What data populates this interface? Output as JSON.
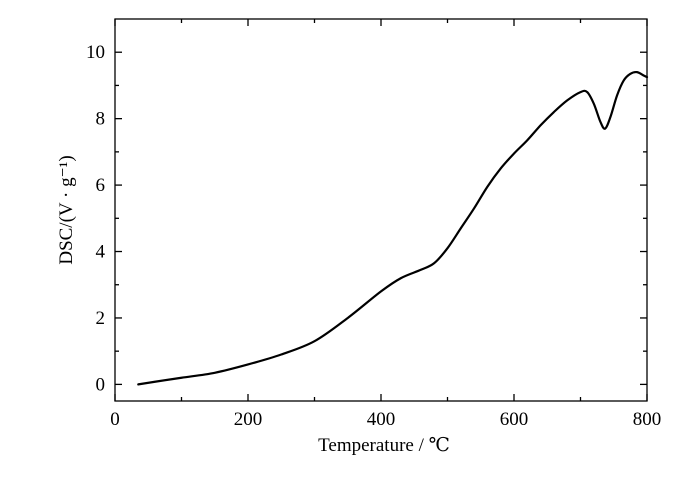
{
  "chart_data": {
    "type": "line",
    "title": "",
    "xlabel": "Temperature / ℃",
    "ylabel": "DSC/(V · g⁻¹)",
    "xlim": [
      0,
      800
    ],
    "ylim": [
      -0.5,
      11
    ],
    "grid": false,
    "legend": "none",
    "x_ticks": [
      "0",
      "200",
      "400",
      "600",
      "800"
    ],
    "y_ticks": [
      "0",
      "2",
      "4",
      "6",
      "8",
      "10"
    ],
    "series": [
      {
        "color": "#000000",
        "x": [
          35,
          60,
          100,
          150,
          200,
          250,
          300,
          350,
          400,
          430,
          460,
          480,
          500,
          520,
          540,
          560,
          580,
          600,
          620,
          640,
          660,
          680,
          700,
          710,
          720,
          730,
          737,
          745,
          755,
          765,
          775,
          785,
          795,
          800
        ],
        "y": [
          0.0,
          0.08,
          0.2,
          0.35,
          0.6,
          0.9,
          1.3,
          2.0,
          2.8,
          3.2,
          3.45,
          3.65,
          4.1,
          4.7,
          5.3,
          5.95,
          6.5,
          6.95,
          7.35,
          7.8,
          8.2,
          8.55,
          8.8,
          8.8,
          8.45,
          7.9,
          7.7,
          8.05,
          8.7,
          9.15,
          9.35,
          9.4,
          9.3,
          9.25
        ]
      }
    ]
  }
}
